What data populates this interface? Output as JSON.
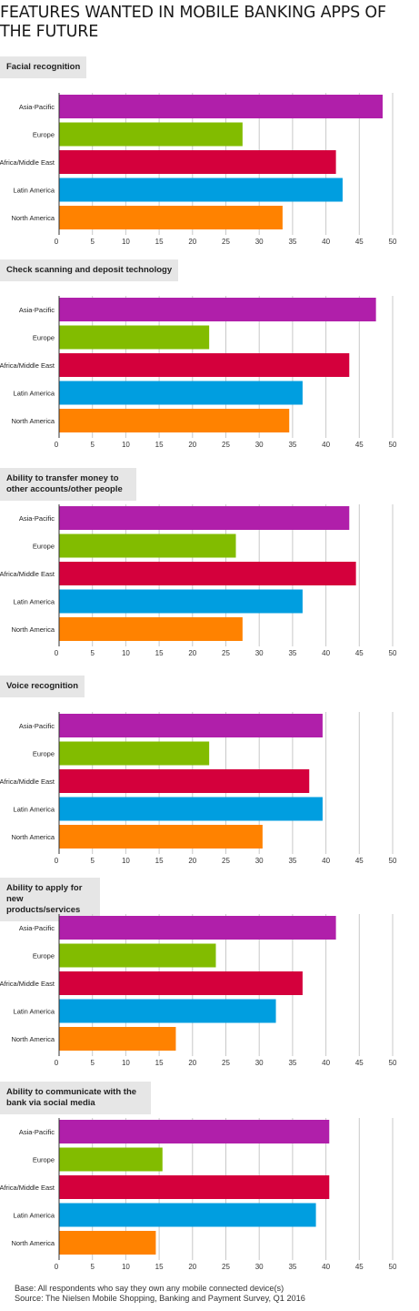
{
  "title": "FEATURES WANTED IN MOBILE BANKING APPS OF THE FUTURE",
  "colors": {
    "Asia-Pacific": "#b01faa",
    "Europe": "#82bc00",
    "Africa/Middle East": "#d4003c",
    "Latin America": "#009ee0",
    "North America": "#ff8200"
  },
  "chart_data": [
    {
      "type": "bar",
      "title": "Facial recognition",
      "categories": [
        "Asia-Pacific",
        "Europe",
        "Africa/Middle East",
        "Latin America",
        "North America"
      ],
      "values": [
        48.5,
        27.5,
        41.5,
        42.5,
        33.5
      ],
      "xlim": [
        0,
        50
      ],
      "ticks": [
        0,
        5,
        10,
        15,
        20,
        25,
        30,
        35,
        40,
        45,
        50
      ],
      "grid": true
    },
    {
      "type": "bar",
      "title": "Check scanning and deposit technology",
      "categories": [
        "Asia-Pacific",
        "Europe",
        "Africa/Middle East",
        "Latin America",
        "North America"
      ],
      "values": [
        47.5,
        22.5,
        43.5,
        36.5,
        34.5
      ],
      "xlim": [
        0,
        50
      ],
      "ticks": [
        0,
        5,
        10,
        15,
        20,
        25,
        30,
        35,
        40,
        45,
        50
      ],
      "grid": true
    },
    {
      "type": "bar",
      "title": "Ability to transfer money to other accounts/other people",
      "categories": [
        "Asia-Pacific",
        "Europe",
        "Africa/Middle East",
        "Latin America",
        "North America"
      ],
      "values": [
        43.5,
        26.5,
        44.5,
        36.5,
        27.5
      ],
      "xlim": [
        0,
        50
      ],
      "ticks": [
        0,
        5,
        10,
        15,
        20,
        25,
        30,
        35,
        40,
        45,
        50
      ],
      "grid": true
    },
    {
      "type": "bar",
      "title": "Voice recognition",
      "categories": [
        "Asia-Pacific",
        "Europe",
        "Africa/Middle East",
        "Latin America",
        "North America"
      ],
      "values": [
        39.5,
        22.5,
        37.5,
        39.5,
        30.5
      ],
      "xlim": [
        0,
        50
      ],
      "ticks": [
        0,
        5,
        10,
        15,
        20,
        25,
        30,
        35,
        40,
        45,
        50
      ],
      "grid": true
    },
    {
      "type": "bar",
      "title": "Ability to apply for new products/services",
      "categories": [
        "Asia-Pacific",
        "Europe",
        "Africa/Middle East",
        "Latin America",
        "North America"
      ],
      "values": [
        41.5,
        23.5,
        36.5,
        32.5,
        17.5
      ],
      "xlim": [
        0,
        50
      ],
      "ticks": [
        0,
        5,
        10,
        15,
        20,
        25,
        30,
        35,
        40,
        45,
        50
      ],
      "grid": true
    },
    {
      "type": "bar",
      "title": "Ability to communicate with the bank via social media",
      "categories": [
        "Asia-Pacific",
        "Europe",
        "Africa/Middle East",
        "Latin America",
        "North America"
      ],
      "values": [
        40.5,
        15.5,
        40.5,
        38.5,
        14.5
      ],
      "xlim": [
        0,
        50
      ],
      "ticks": [
        0,
        5,
        10,
        15,
        20,
        25,
        30,
        35,
        40,
        45,
        50
      ],
      "grid": true
    }
  ],
  "footnote": {
    "base": "Base: All respondents who say they own any mobile connected device(s)",
    "source": "Source: The Nielsen Mobile Shopping, Banking and Payment Survey, Q1 2016"
  }
}
